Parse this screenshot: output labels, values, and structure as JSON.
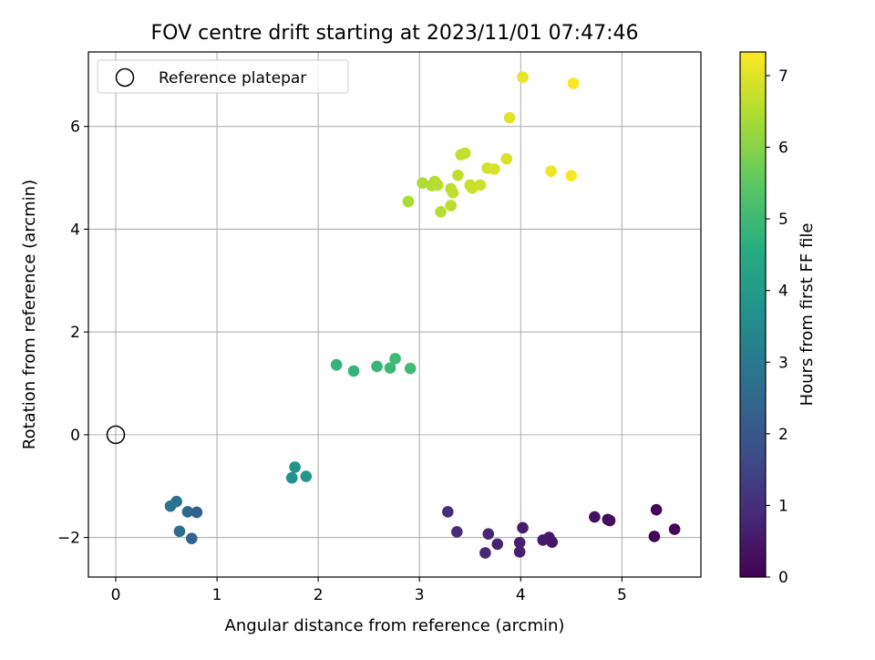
{
  "chart_data": {
    "type": "scatter",
    "title": "FOV centre drift starting at 2023/11/01 07:47:46",
    "xlabel": "Angular distance from reference (arcmin)",
    "ylabel": "Rotation from reference (arcmin)",
    "xlim": [
      -0.27,
      5.78
    ],
    "ylim": [
      -2.77,
      7.45
    ],
    "xticks": [
      0,
      1,
      2,
      3,
      4,
      5
    ],
    "yticks": [
      -2,
      0,
      2,
      4,
      6
    ],
    "xtick_labels": [
      "0",
      "1",
      "2",
      "3",
      "4",
      "5"
    ],
    "ytick_labels": [
      "−2",
      "0",
      "2",
      "4",
      "6"
    ],
    "grid": true,
    "legend_position": "top-left",
    "legend": [
      {
        "label": "Reference platepar",
        "marker": "open-circle"
      }
    ],
    "reference_point": {
      "x": 0,
      "y": 0
    },
    "colorbar": {
      "label": "Hours from first FF file",
      "range": [
        0,
        7.33
      ],
      "ticks": [
        0,
        1,
        2,
        3,
        4,
        5,
        6,
        7
      ],
      "tick_labels": [
        "0",
        "1",
        "2",
        "3",
        "4",
        "5",
        "6",
        "7"
      ],
      "colormap": "viridis"
    },
    "points": [
      {
        "x": 5.32,
        "y": -1.98,
        "h": 0.05
      },
      {
        "x": 5.52,
        "y": -1.84,
        "h": 0.1
      },
      {
        "x": 5.34,
        "y": -1.46,
        "h": 0.15
      },
      {
        "x": 4.86,
        "y": -1.65,
        "h": 0.2
      },
      {
        "x": 4.88,
        "y": -1.67,
        "h": 0.25
      },
      {
        "x": 4.73,
        "y": -1.6,
        "h": 0.3
      },
      {
        "x": 4.31,
        "y": -2.09,
        "h": 0.45
      },
      {
        "x": 4.28,
        "y": -2.0,
        "h": 0.5
      },
      {
        "x": 4.22,
        "y": -2.05,
        "h": 0.55
      },
      {
        "x": 4.02,
        "y": -1.81,
        "h": 0.6
      },
      {
        "x": 3.99,
        "y": -2.28,
        "h": 0.65
      },
      {
        "x": 3.99,
        "y": -2.1,
        "h": 0.7
      },
      {
        "x": 3.77,
        "y": -2.13,
        "h": 0.75
      },
      {
        "x": 3.68,
        "y": -1.93,
        "h": 0.8
      },
      {
        "x": 3.65,
        "y": -2.3,
        "h": 0.85
      },
      {
        "x": 3.37,
        "y": -1.89,
        "h": 0.9
      },
      {
        "x": 3.28,
        "y": -1.5,
        "h": 0.95
      },
      {
        "x": 0.8,
        "y": -1.51,
        "h": 2.3
      },
      {
        "x": 0.75,
        "y": -2.02,
        "h": 2.4
      },
      {
        "x": 0.71,
        "y": -1.5,
        "h": 2.5
      },
      {
        "x": 0.63,
        "y": -1.88,
        "h": 2.6
      },
      {
        "x": 0.6,
        "y": -1.3,
        "h": 2.7
      },
      {
        "x": 0.54,
        "y": -1.39,
        "h": 2.8
      },
      {
        "x": 1.74,
        "y": -0.84,
        "h": 3.7
      },
      {
        "x": 1.77,
        "y": -0.63,
        "h": 3.8
      },
      {
        "x": 1.88,
        "y": -0.81,
        "h": 3.9
      },
      {
        "x": 2.18,
        "y": 1.36,
        "h": 4.8
      },
      {
        "x": 2.35,
        "y": 1.24,
        "h": 4.85
      },
      {
        "x": 2.58,
        "y": 1.33,
        "h": 4.9
      },
      {
        "x": 2.71,
        "y": 1.3,
        "h": 4.95
      },
      {
        "x": 2.76,
        "y": 1.48,
        "h": 5.0
      },
      {
        "x": 2.91,
        "y": 1.29,
        "h": 5.05
      },
      {
        "x": 2.89,
        "y": 4.54,
        "h": 6.4
      },
      {
        "x": 3.03,
        "y": 4.9,
        "h": 6.45
      },
      {
        "x": 3.12,
        "y": 4.85,
        "h": 6.5
      },
      {
        "x": 3.15,
        "y": 4.93,
        "h": 6.5
      },
      {
        "x": 3.18,
        "y": 4.86,
        "h": 6.55
      },
      {
        "x": 3.21,
        "y": 4.34,
        "h": 6.55
      },
      {
        "x": 3.31,
        "y": 4.46,
        "h": 6.6
      },
      {
        "x": 3.31,
        "y": 4.79,
        "h": 6.6
      },
      {
        "x": 3.33,
        "y": 4.71,
        "h": 6.65
      },
      {
        "x": 3.38,
        "y": 5.05,
        "h": 6.65
      },
      {
        "x": 3.41,
        "y": 5.45,
        "h": 6.7
      },
      {
        "x": 3.45,
        "y": 5.48,
        "h": 6.7
      },
      {
        "x": 3.5,
        "y": 4.86,
        "h": 6.75
      },
      {
        "x": 3.52,
        "y": 4.8,
        "h": 6.75
      },
      {
        "x": 3.6,
        "y": 4.86,
        "h": 6.8
      },
      {
        "x": 3.67,
        "y": 5.19,
        "h": 6.85
      },
      {
        "x": 3.74,
        "y": 5.17,
        "h": 6.9
      },
      {
        "x": 3.86,
        "y": 5.37,
        "h": 6.95
      },
      {
        "x": 3.89,
        "y": 6.17,
        "h": 7.0
      },
      {
        "x": 4.02,
        "y": 6.96,
        "h": 7.1
      },
      {
        "x": 4.3,
        "y": 5.13,
        "h": 7.2
      },
      {
        "x": 4.5,
        "y": 5.04,
        "h": 7.25
      },
      {
        "x": 4.52,
        "y": 6.84,
        "h": 7.3
      }
    ]
  }
}
